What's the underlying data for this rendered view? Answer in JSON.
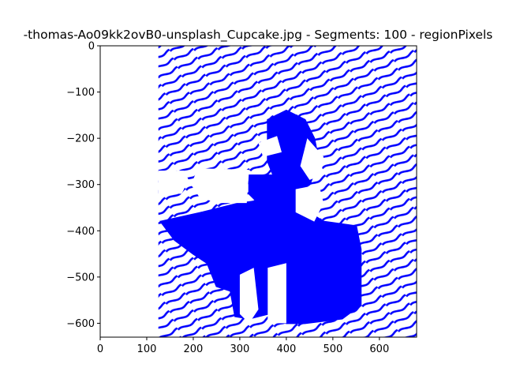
{
  "chart_data": {
    "type": "line",
    "title": "-thomas-Ao09kk2ovB0-unsplash_Cupcake.jpg - Segments: 100 - regionPixels",
    "xlabel": "",
    "ylabel": "",
    "xlim": [
      0,
      680
    ],
    "ylim": [
      -630,
      0
    ],
    "x_ticks": [
      0,
      100,
      200,
      300,
      400,
      500,
      600
    ],
    "y_ticks": [
      0,
      -100,
      -200,
      -300,
      -400,
      -500,
      -600
    ],
    "x_tick_labels": [
      "0",
      "100",
      "200",
      "300",
      "400",
      "500",
      "600"
    ],
    "y_tick_labels": [
      "0",
      "−100",
      "−200",
      "−300",
      "−400",
      "−500",
      "−600"
    ],
    "grid": false,
    "line_color": "#0000ff",
    "dense_regions": [
      {
        "x": [
          125,
          680
        ],
        "y": [
          -630,
          0
        ]
      }
    ],
    "solid_regions": [
      {
        "points": [
          [
            130,
            -380
          ],
          [
            220,
            -360
          ],
          [
            300,
            -340
          ],
          [
            400,
            -330
          ],
          [
            480,
            -380
          ],
          [
            550,
            -390
          ],
          [
            560,
            -440
          ],
          [
            560,
            -560
          ],
          [
            520,
            -590
          ],
          [
            440,
            -600
          ],
          [
            400,
            -600
          ],
          [
            360,
            -580
          ],
          [
            320,
            -590
          ],
          [
            290,
            -585
          ],
          [
            280,
            -530
          ],
          [
            250,
            -520
          ],
          [
            230,
            -470
          ],
          [
            200,
            -450
          ],
          [
            160,
            -420
          ]
        ]
      },
      {
        "points": [
          [
            360,
            -160
          ],
          [
            400,
            -140
          ],
          [
            440,
            -160
          ],
          [
            460,
            -200
          ],
          [
            470,
            -250
          ],
          [
            450,
            -300
          ],
          [
            420,
            -320
          ],
          [
            380,
            -300
          ],
          [
            360,
            -250
          ]
        ]
      },
      {
        "points": [
          [
            320,
            -280
          ],
          [
            380,
            -280
          ],
          [
            420,
            -300
          ],
          [
            420,
            -340
          ],
          [
            340,
            -340
          ],
          [
            320,
            -320
          ]
        ]
      }
    ],
    "blank_regions": [
      {
        "points": [
          [
            125,
            -270
          ],
          [
            180,
            -270
          ],
          [
            190,
            -290
          ],
          [
            175,
            -320
          ],
          [
            125,
            -320
          ]
        ]
      },
      {
        "points": [
          [
            210,
            -265
          ],
          [
            320,
            -268
          ],
          [
            315,
            -340
          ],
          [
            260,
            -340
          ],
          [
            215,
            -330
          ],
          [
            195,
            -300
          ]
        ]
      },
      {
        "points": [
          [
            340,
            -210
          ],
          [
            380,
            -195
          ],
          [
            390,
            -230
          ],
          [
            350,
            -240
          ]
        ]
      },
      {
        "points": [
          [
            445,
            -200
          ],
          [
            480,
            -240
          ],
          [
            475,
            -280
          ],
          [
            450,
            -290
          ],
          [
            430,
            -260
          ]
        ]
      },
      {
        "points": [
          [
            420,
            -310
          ],
          [
            470,
            -300
          ],
          [
            480,
            -340
          ],
          [
            460,
            -380
          ],
          [
            420,
            -360
          ]
        ]
      },
      {
        "points": [
          [
            300,
            -495
          ],
          [
            330,
            -480
          ],
          [
            340,
            -570
          ],
          [
            320,
            -600
          ],
          [
            300,
            -580
          ]
        ]
      },
      {
        "points": [
          [
            360,
            -480
          ],
          [
            400,
            -470
          ],
          [
            400,
            -600
          ],
          [
            360,
            -600
          ]
        ]
      }
    ]
  }
}
